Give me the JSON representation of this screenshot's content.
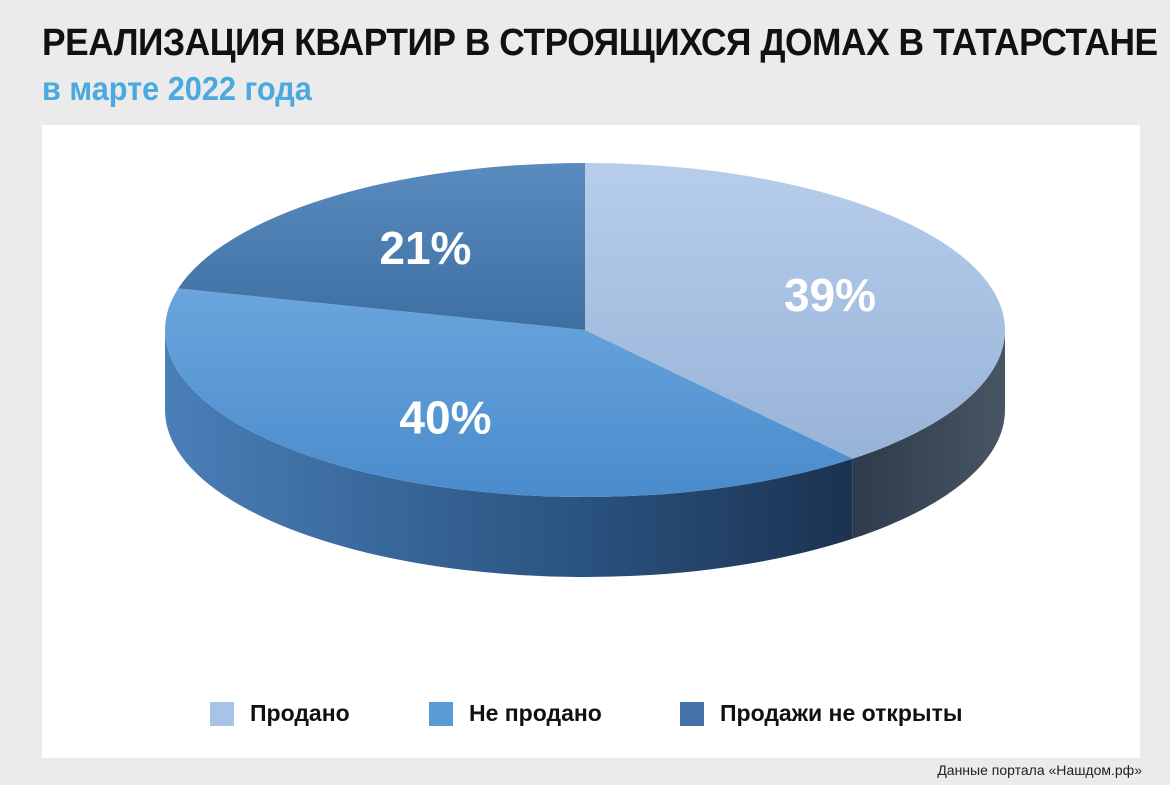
{
  "title": "РЕАЛИЗАЦИЯ КВАРТИР В СТРОЯЩИХСЯ ДОМАХ В ТАТАРСТАНЕ",
  "subtitle": "в марте 2022 года",
  "source": "Данные портала «Нашдом.рф»",
  "chart_data": {
    "type": "pie",
    "style": "3d",
    "categories": [
      "Продано",
      "Не продано",
      "Продажи не открыты"
    ],
    "values": [
      39,
      40,
      21
    ],
    "labels": [
      "39%",
      "40%",
      "21%"
    ],
    "colors": [
      "#a9c3e6",
      "#5b9bd5",
      "#4472a8"
    ],
    "legend_position": "bottom"
  }
}
